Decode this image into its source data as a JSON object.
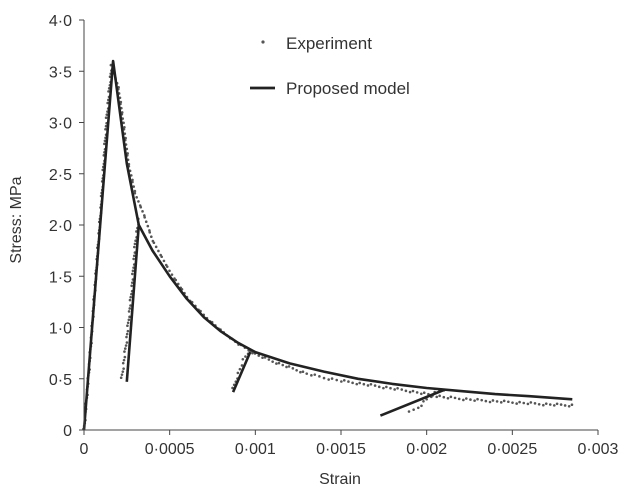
{
  "chart_data": {
    "type": "scatter",
    "xlabel": "Strain",
    "ylabel": "Stress: MPa",
    "xlim": [
      0,
      0.003
    ],
    "ylim": [
      0,
      4.0
    ],
    "x_ticks": [
      "0",
      "0·0005",
      "0·001",
      "0·0015",
      "0·002",
      "0·0025",
      "0·003"
    ],
    "y_ticks": [
      "0",
      "0·5",
      "1·0",
      "1·5",
      "2·0",
      "2·5",
      "3·0",
      "3·5",
      "4·0"
    ],
    "legend": {
      "placement": "top-center"
    },
    "series": [
      {
        "name": "Experiment",
        "style": "dotted-markers",
        "color": "#555555",
        "segments": [
          [
            [
              0,
              0
            ],
            [
              3e-05,
              0.6
            ],
            [
              6e-05,
              1.3
            ],
            [
              0.0001,
              2.2
            ],
            [
              0.00013,
              3.0
            ],
            [
              0.00016,
              3.55
            ],
            [
              0.0002,
              3.35
            ],
            [
              0.00023,
              3.0
            ],
            [
              0.00026,
              2.6
            ],
            [
              0.0003,
              2.3
            ],
            [
              0.00035,
              2.1
            ],
            [
              0.0004,
              1.85
            ],
            [
              0.0005,
              1.55
            ],
            [
              0.0006,
              1.3
            ],
            [
              0.0007,
              1.12
            ],
            [
              0.0008,
              0.97
            ],
            [
              0.0009,
              0.84
            ],
            [
              0.001,
              0.74
            ],
            [
              0.0011,
              0.67
            ],
            [
              0.0012,
              0.61
            ],
            [
              0.0013,
              0.55
            ],
            [
              0.0014,
              0.51
            ],
            [
              0.0015,
              0.48
            ],
            [
              0.0017,
              0.43
            ],
            [
              0.0019,
              0.38
            ],
            [
              0.0021,
              0.32
            ],
            [
              0.0023,
              0.29
            ],
            [
              0.0025,
              0.27
            ],
            [
              0.0027,
              0.25
            ],
            [
              0.00285,
              0.24
            ]
          ],
          [
            [
              0.00022,
              0.5
            ],
            [
              0.00025,
              0.9
            ],
            [
              0.00028,
              1.4
            ],
            [
              0.0003,
              1.85
            ],
            [
              0.00032,
              2.05
            ]
          ],
          [
            [
              0.00087,
              0.4
            ],
            [
              0.0009,
              0.55
            ],
            [
              0.00093,
              0.68
            ],
            [
              0.00097,
              0.78
            ]
          ],
          [
            [
              0.0019,
              0.17
            ],
            [
              0.00195,
              0.22
            ],
            [
              0.002,
              0.3
            ],
            [
              0.00205,
              0.36
            ],
            [
              0.0021,
              0.39
            ]
          ]
        ]
      },
      {
        "name": "Proposed model",
        "style": "solid-line",
        "color": "#222222",
        "segments": [
          [
            [
              0,
              0
            ],
            [
              0.00017,
              3.6
            ],
            [
              0.00025,
              2.6
            ],
            [
              0.00032,
              2.0
            ],
            [
              0.0004,
              1.75
            ],
            [
              0.0005,
              1.5
            ],
            [
              0.0006,
              1.28
            ],
            [
              0.0007,
              1.1
            ],
            [
              0.0008,
              0.96
            ],
            [
              0.0009,
              0.85
            ],
            [
              0.001,
              0.76
            ],
            [
              0.0012,
              0.65
            ],
            [
              0.0014,
              0.57
            ],
            [
              0.0016,
              0.5
            ],
            [
              0.0018,
              0.45
            ],
            [
              0.002,
              0.41
            ],
            [
              0.0022,
              0.38
            ],
            [
              0.0024,
              0.35
            ],
            [
              0.0026,
              0.33
            ],
            [
              0.00285,
              0.3
            ]
          ],
          [
            [
              0.00025,
              0.47
            ],
            [
              0.00032,
              2.0
            ]
          ],
          [
            [
              0.00087,
              0.37
            ],
            [
              0.00097,
              0.76
            ]
          ],
          [
            [
              0.00173,
              0.14
            ],
            [
              0.0021,
              0.39
            ]
          ]
        ]
      }
    ]
  }
}
